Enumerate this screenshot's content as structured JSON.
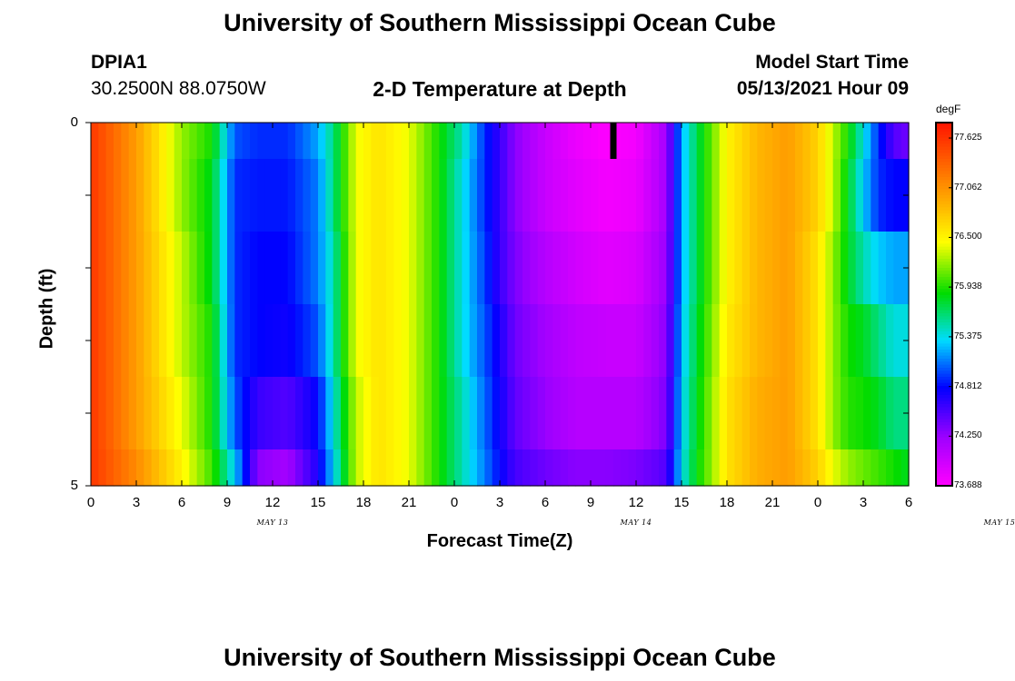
{
  "page": {
    "title_top": "University of Southern Mississippi Ocean Cube",
    "title_bottom": "University of Southern Mississippi Ocean Cube",
    "station_id": "DPIA1",
    "station_coords": "30.2500N  88.0750W",
    "plot_title": "2-D Temperature at Depth",
    "model_start_label": "Model Start Time",
    "model_start_value": "05/13/2021 Hour 09"
  },
  "chart_data": {
    "type": "heatmap",
    "title": "2-D Temperature at Depth",
    "xlabel": "Forecast Time(Z)",
    "ylabel": "Depth (ft)",
    "x_tick_labels": [
      "0",
      "3",
      "6",
      "9",
      "12",
      "15",
      "18",
      "21",
      "0",
      "3",
      "6",
      "9",
      "12",
      "15",
      "18",
      "21",
      "0",
      "3",
      "6"
    ],
    "y_tick_labels": [
      "0",
      "5"
    ],
    "y_range": [
      0,
      5
    ],
    "date_labels": [
      {
        "text": "MAY 13",
        "hour": 12
      },
      {
        "text": "MAY 14",
        "hour": 36
      },
      {
        "text": "MAY 15",
        "hour": 60
      }
    ],
    "x_range_hours": [
      0,
      54
    ],
    "colorbar": {
      "unit": "degF",
      "min": 73.688,
      "max": 77.8,
      "tick_values": [
        77.625,
        77.062,
        76.5,
        75.938,
        75.375,
        74.812,
        74.25,
        73.688
      ],
      "tick_labels": [
        "77.625",
        "77.062",
        "76.500",
        "75.938",
        "75.375",
        "74.812",
        "74.250",
        "73.688"
      ]
    },
    "marker": {
      "hour": 34.5,
      "depth_top": 0,
      "depth_bottom": 0.5
    },
    "depth_bands": [
      0,
      0.5,
      1.5,
      2.5,
      3.5,
      4.5,
      5
    ],
    "hour_keys": [
      0,
      3,
      6,
      8,
      9.5,
      11,
      13,
      15,
      16,
      17.5,
      19,
      21,
      23,
      24.5,
      26,
      27,
      28,
      30,
      32,
      34,
      36,
      38,
      38.5,
      39,
      40,
      41,
      42,
      44,
      46,
      48,
      49,
      50,
      51,
      52,
      53,
      54
    ],
    "temperature_by_band": [
      [
        77.6,
        77.0,
        76.2,
        75.9,
        75.0,
        74.9,
        74.9,
        75.2,
        75.6,
        76.4,
        76.6,
        76.4,
        75.9,
        75.5,
        74.9,
        74.6,
        74.3,
        74.0,
        73.8,
        73.7,
        73.75,
        74.2,
        74.7,
        75.2,
        75.7,
        76.1,
        76.5,
        76.85,
        77.0,
        76.7,
        76.3,
        75.9,
        75.4,
        74.9,
        74.5,
        74.4
      ],
      [
        77.6,
        77.0,
        76.2,
        75.8,
        74.9,
        74.85,
        74.85,
        75.1,
        75.6,
        76.4,
        76.6,
        76.4,
        75.9,
        75.4,
        74.9,
        74.6,
        74.3,
        74.0,
        73.85,
        73.75,
        73.8,
        74.2,
        74.7,
        75.2,
        75.7,
        76.1,
        76.5,
        76.85,
        77.0,
        76.7,
        76.3,
        75.8,
        75.3,
        74.9,
        74.8,
        74.8
      ],
      [
        77.6,
        77.0,
        76.3,
        75.8,
        74.9,
        74.8,
        74.8,
        75.1,
        75.5,
        76.4,
        76.6,
        76.4,
        75.9,
        75.4,
        74.95,
        74.6,
        74.35,
        74.1,
        73.95,
        73.85,
        73.9,
        74.25,
        74.7,
        75.2,
        75.7,
        76.1,
        76.5,
        76.85,
        77.0,
        76.6,
        76.2,
        75.8,
        75.5,
        75.3,
        75.2,
        75.2
      ],
      [
        77.6,
        77.0,
        76.3,
        75.9,
        74.9,
        74.8,
        74.75,
        75.0,
        75.5,
        76.4,
        76.6,
        76.4,
        75.9,
        75.4,
        75.0,
        74.7,
        74.4,
        74.2,
        74.05,
        74.0,
        74.0,
        74.3,
        74.75,
        75.25,
        75.75,
        76.15,
        76.55,
        76.85,
        77.0,
        76.6,
        76.2,
        75.9,
        75.8,
        75.6,
        75.4,
        75.4
      ],
      [
        77.6,
        77.0,
        76.4,
        75.9,
        75.0,
        74.6,
        74.5,
        74.8,
        75.4,
        76.3,
        76.6,
        76.4,
        75.9,
        75.5,
        75.05,
        74.75,
        74.45,
        74.25,
        74.1,
        74.1,
        74.1,
        74.35,
        74.8,
        75.3,
        75.8,
        76.2,
        76.6,
        76.9,
        77.0,
        76.6,
        76.2,
        75.95,
        75.9,
        75.8,
        75.6,
        75.6
      ],
      [
        77.6,
        77.1,
        76.5,
        76.0,
        75.3,
        74.3,
        74.2,
        74.7,
        75.3,
        76.3,
        76.6,
        76.4,
        75.9,
        75.5,
        75.1,
        74.8,
        74.55,
        74.4,
        74.3,
        74.3,
        74.35,
        74.5,
        74.9,
        75.35,
        75.85,
        76.2,
        76.6,
        76.9,
        77.0,
        76.7,
        76.4,
        76.2,
        76.1,
        76.0,
        75.9,
        75.8
      ]
    ]
  }
}
